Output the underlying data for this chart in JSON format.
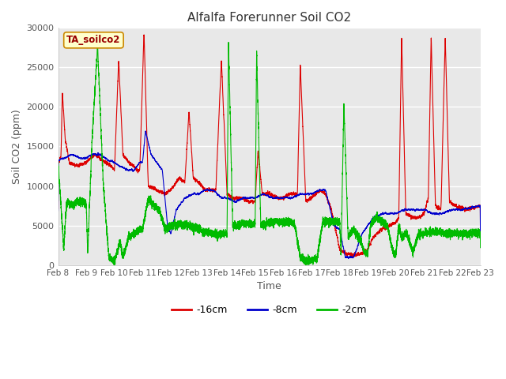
{
  "title": "Alfalfa Forerunner Soil CO2",
  "xlabel": "Time",
  "ylabel": "Soil CO2 (ppm)",
  "ylim": [
    0,
    30000
  ],
  "yticks": [
    0,
    5000,
    10000,
    15000,
    20000,
    25000,
    30000
  ],
  "xtick_labels": [
    "Feb 8",
    "Feb 9",
    "Feb 10",
    "Feb 11",
    "Feb 12",
    "Feb 13",
    "Feb 14",
    "Feb 15",
    "Feb 16",
    "Feb 17",
    "Feb 18",
    "Feb 19",
    "Feb 20",
    "Feb 21",
    "Feb 22",
    "Feb 23"
  ],
  "legend_label": "TA_soilco2",
  "line_labels": [
    "-16cm",
    "-8cm",
    "-2cm"
  ],
  "line_colors": [
    "#dd0000",
    "#0000cc",
    "#00bb00"
  ],
  "bg_color": "#e8e8e8",
  "plot_bg": "#e8e8e8",
  "grid_color": "#ffffff",
  "title_color": "#333333",
  "label_color": "#555555",
  "figsize": [
    6.4,
    4.8
  ],
  "dpi": 100
}
